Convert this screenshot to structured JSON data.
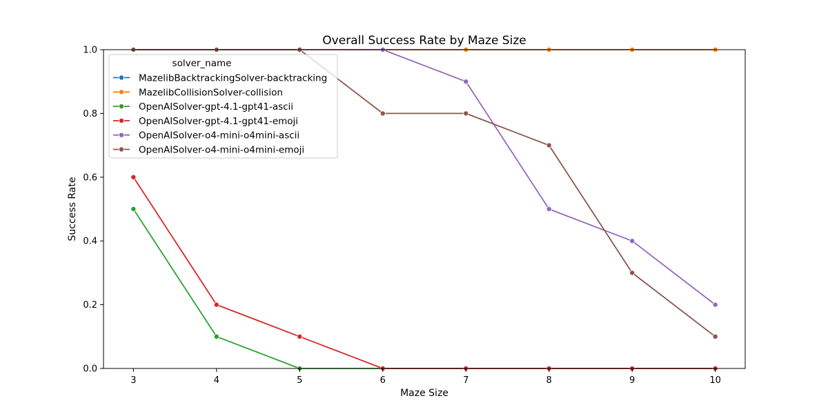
{
  "chart_data": {
    "type": "line",
    "title": "Overall Success Rate by Maze Size",
    "xlabel": "Maze Size",
    "ylabel": "Success Rate",
    "x": [
      3,
      4,
      5,
      6,
      7,
      8,
      9,
      10
    ],
    "xlim": [
      2.64,
      10.36
    ],
    "ylim": [
      0,
      1
    ],
    "xticks": [
      "3",
      "4",
      "5",
      "6",
      "7",
      "8",
      "9",
      "10"
    ],
    "yticks": [
      "0.0",
      "0.2",
      "0.4",
      "0.6",
      "0.8",
      "1.0"
    ],
    "grid": false,
    "legend": {
      "title": "solver_name",
      "placement": "upper-left"
    },
    "series": [
      {
        "name": "MazelibBacktrackingSolver-backtracking",
        "color": "#1f77b4",
        "values": [
          1,
          1,
          1,
          1,
          1,
          1,
          1,
          1
        ]
      },
      {
        "name": "MazelibCollisionSolver-collision",
        "color": "#ff7f0e",
        "values": [
          1,
          1,
          1,
          1,
          1,
          1,
          1,
          1
        ]
      },
      {
        "name": "OpenAISolver-gpt-4.1-gpt41-ascii",
        "color": "#2ca02c",
        "values": [
          0.5,
          0.1,
          0.0,
          0.0,
          0.0,
          0.0,
          0.0,
          0.0
        ]
      },
      {
        "name": "OpenAISolver-gpt-4.1-gpt41-emoji",
        "color": "#d62728",
        "values": [
          0.6,
          0.2,
          0.1,
          0.0,
          0.0,
          0.0,
          0.0,
          0.0
        ]
      },
      {
        "name": "OpenAISolver-o4-mini-o4mini-ascii",
        "color": "#9467bd",
        "values": [
          1,
          1,
          1,
          1,
          0.9,
          0.5,
          0.4,
          0.2
        ]
      },
      {
        "name": "OpenAISolver-o4-mini-o4mini-emoji",
        "color": "#8c564b",
        "values": [
          1,
          1,
          1,
          0.8,
          0.8,
          0.7,
          0.3,
          0.1
        ]
      }
    ]
  }
}
